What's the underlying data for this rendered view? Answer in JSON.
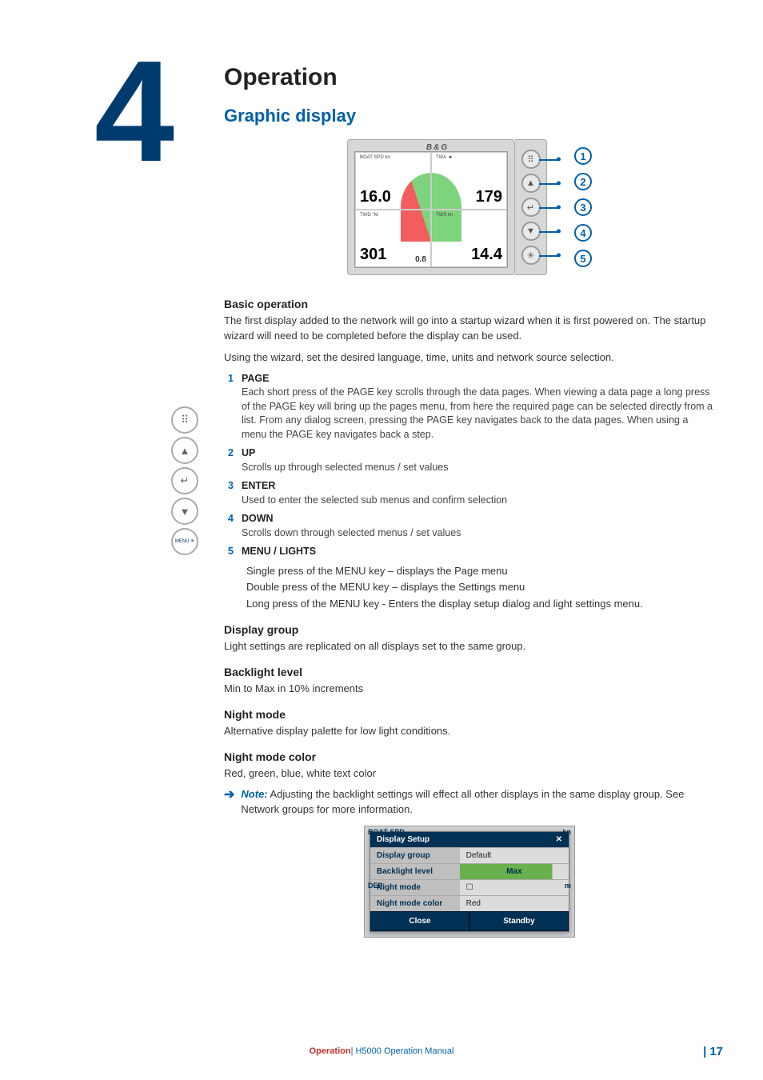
{
  "chapterNumber": "4",
  "chapterTitle": "Operation",
  "sectionTitle": "Graphic display",
  "device": {
    "brand": "B&G",
    "cells": [
      {
        "label": "BOAT SPD  kn",
        "value": "16.0"
      },
      {
        "label": "TWA  ◄",
        "value": "179"
      },
      {
        "label": "TWD     °M",
        "value": "301",
        "extra": "0.8"
      },
      {
        "label": "TWS       kn",
        "value": "14.4"
      }
    ],
    "buttons": [
      "⠿",
      "▲",
      "↵",
      "▼",
      "✳"
    ],
    "callouts": [
      "1",
      "2",
      "3",
      "4",
      "5"
    ]
  },
  "basic": {
    "heading": "Basic operation",
    "p1": "The first display added to the network will go into a startup wizard when it is first powered on. The startup wizard will need to be completed before the display can be used.",
    "p2": "Using the wizard, set the desired language, time, units and network source selection."
  },
  "keys": [
    {
      "n": "1",
      "k": "PAGE",
      "d": "Each short press of the PAGE key scrolls through the data pages. When viewing a data page a long press of the PAGE key will bring up the pages menu, from here the required page can be selected directly from a list. From any dialog screen, pressing the PAGE key navigates back to the data pages. When using a menu the PAGE key navigates back a step."
    },
    {
      "n": "2",
      "k": "UP",
      "d": "Scrolls up through selected menus / set values"
    },
    {
      "n": "3",
      "k": "ENTER",
      "d": "Used to enter the selected sub menus and confirm selection"
    },
    {
      "n": "4",
      "k": "DOWN",
      "d": "Scrolls down through selected menus / set values"
    },
    {
      "n": "5",
      "k": "MENU / LIGHTS",
      "d": ""
    }
  ],
  "menuLines": [
    "Single press of the MENU key – displays the Page menu",
    "Double press of the MENU key – displays the Settings menu",
    "Long press of the MENU key - Enters the display setup dialog and light settings menu."
  ],
  "subs": [
    {
      "h": "Display group",
      "p": "Light settings are replicated on all displays set to the same group."
    },
    {
      "h": "Backlight level",
      "p": "Min to Max in 10% increments"
    },
    {
      "h": "Night mode",
      "p": "Alternative display palette for low light conditions."
    },
    {
      "h": "Night mode color",
      "p": "Red, green, blue, white text color"
    }
  ],
  "note": {
    "label": "Note:",
    "text": " Adjusting the backlight settings will effect all other displays in the same display group. See Network groups for more information."
  },
  "dialog": {
    "title": "Display Setup",
    "cornerTL": "BOAT SPD",
    "cornerTR": "kn",
    "cornerL": "DEP",
    "cornerR": "m",
    "rows": [
      {
        "l": "Display group",
        "v": "Default",
        "slider": false
      },
      {
        "l": "Backlight level",
        "v": "Max",
        "slider": true
      },
      {
        "l": "Night mode",
        "v": "☐",
        "slider": false
      },
      {
        "l": "Night mode color",
        "v": "Red",
        "slider": false
      }
    ],
    "btns": [
      "Close",
      "Standby"
    ]
  },
  "iconStack": [
    "⠿",
    "▲",
    "↵",
    "▼"
  ],
  "iconStackMenu": "MENU\n✳",
  "footer": {
    "left": "Operation ",
    "mid": "| H5000 Operation Manual",
    "page": "17"
  }
}
